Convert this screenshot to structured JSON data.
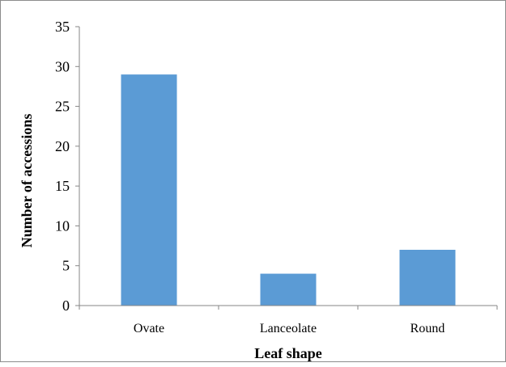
{
  "chart_data": {
    "type": "bar",
    "categories": [
      "Ovate",
      "Lanceolate",
      "Round"
    ],
    "values": [
      29,
      4,
      7
    ],
    "title": "",
    "xlabel": "Leaf shape",
    "ylabel": "Number of accessions",
    "ylim": [
      0,
      35
    ],
    "yticks": [
      0,
      5,
      10,
      15,
      20,
      25,
      30,
      35
    ],
    "grid": false,
    "legend": "none",
    "bar_color": "#5b9bd5",
    "axis_color": "#868686"
  }
}
